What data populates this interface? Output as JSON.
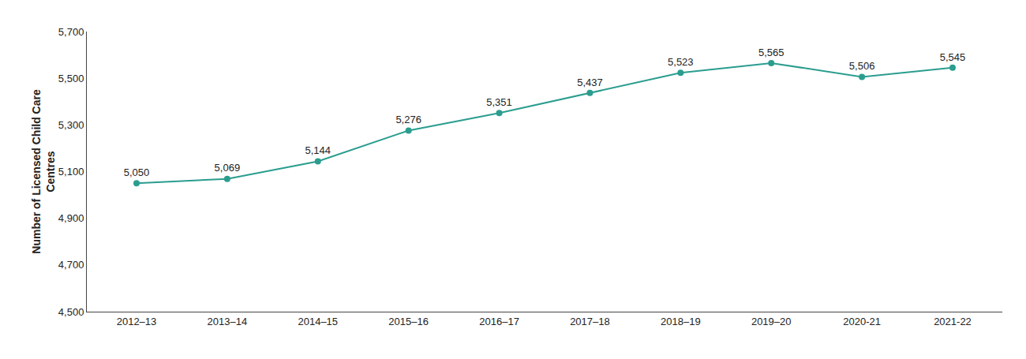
{
  "chart_data": {
    "type": "line",
    "categories": [
      "2012–13",
      "2013–14",
      "2014–15",
      "2015–16",
      "2016–17",
      "2017–18",
      "2018–19",
      "2019–20",
      "2020-21",
      "2021-22"
    ],
    "values": [
      5050,
      5069,
      5144,
      5276,
      5351,
      5437,
      5523,
      5565,
      5506,
      5545
    ],
    "value_labels": [
      "5,050",
      "5,069",
      "5,144",
      "5,276",
      "5,351",
      "5,437",
      "5,523",
      "5,565",
      "5,506",
      "5,545"
    ],
    "color": "#2a9d8f",
    "marker": "circle",
    "ylabel": "Number of Licensed Child Care\nCentres",
    "ylim": [
      4500,
      5700
    ],
    "yticks": [
      {
        "value": 4500,
        "label": "4,500"
      },
      {
        "value": 4700,
        "label": "4,700"
      },
      {
        "value": 4900,
        "label": "4,900"
      },
      {
        "value": 5100,
        "label": "5,100"
      },
      {
        "value": 5300,
        "label": "5,300"
      },
      {
        "value": 5500,
        "label": "5,500"
      },
      {
        "value": 5700,
        "label": "5,700"
      }
    ],
    "grid": false,
    "data_labels": true
  }
}
